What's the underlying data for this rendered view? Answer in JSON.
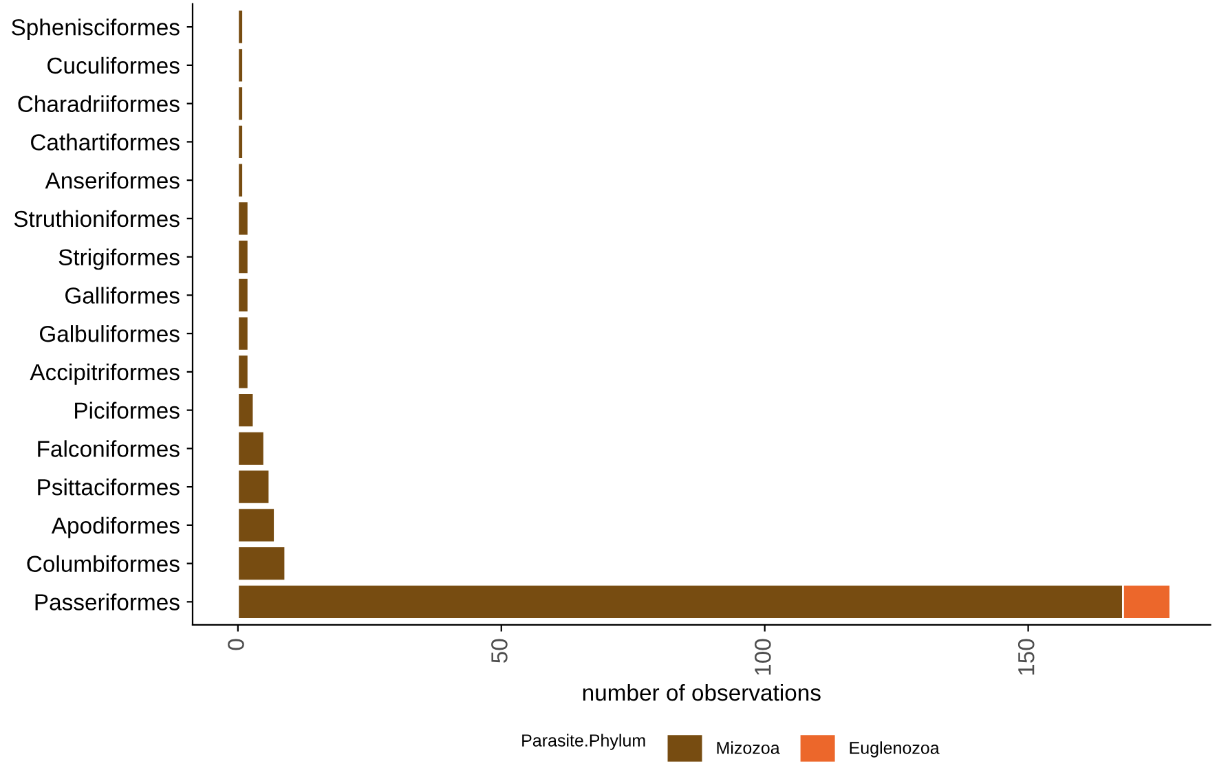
{
  "chart_data": {
    "type": "bar",
    "orientation": "horizontal",
    "stacked": true,
    "xlabel": "number of observations",
    "legend_title": "Parasite.Phylum",
    "legend": "bottom",
    "grid": false,
    "categories": [
      "Sphenisciformes",
      "Cuculiformes",
      "Charadriiformes",
      "Cathartiformes",
      "Anseriformes",
      "Struthioniformes",
      "Strigiformes",
      "Galliformes",
      "Galbuliformes",
      "Accipitriformes",
      "Piciformes",
      "Falconiformes",
      "Psittaciformes",
      "Apodiformes",
      "Columbiformes",
      "Passeriformes"
    ],
    "series": [
      {
        "name": "Mizozoa",
        "color": "#774c11",
        "values": [
          1,
          1,
          1,
          1,
          1,
          2,
          2,
          2,
          2,
          2,
          3,
          5,
          6,
          7,
          9,
          168
        ]
      },
      {
        "name": "Euglenozoa",
        "color": "#ec672b",
        "values": [
          null,
          null,
          null,
          null,
          null,
          null,
          null,
          null,
          null,
          null,
          null,
          null,
          null,
          null,
          null,
          9
        ]
      }
    ],
    "xlim": [
      -8.6,
      184.6
    ],
    "xticks": [
      0,
      50,
      100,
      150
    ]
  }
}
